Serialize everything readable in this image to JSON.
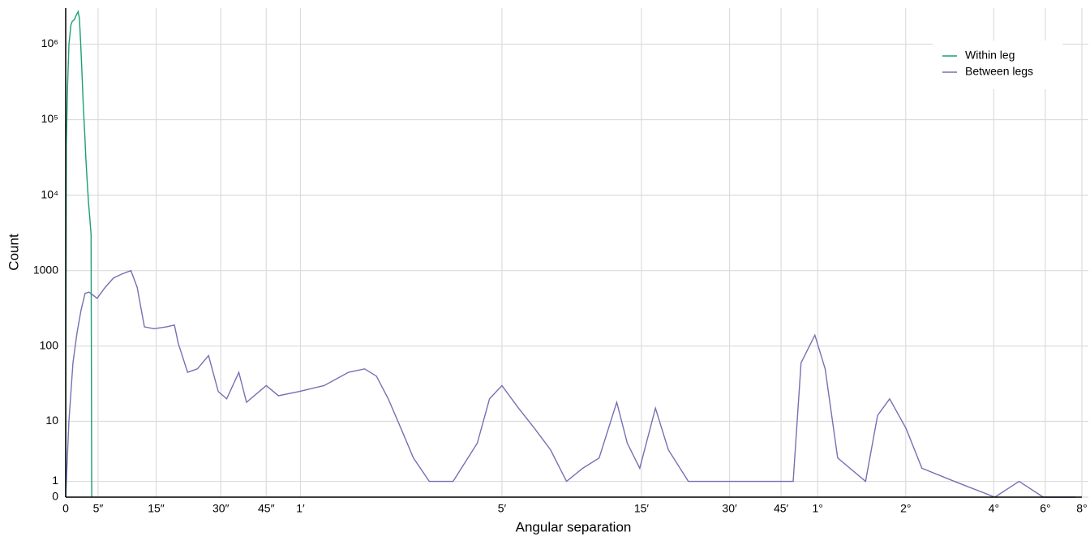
{
  "chart_data": {
    "type": "line",
    "x_label": "Angular separation",
    "y_label": "Count",
    "xscale": "asinh",
    "yscale": "asinh",
    "grid": true,
    "legend": "top-right",
    "xlim": [
      0,
      28800
    ],
    "xticks": [
      0,
      {
        "value": 5,
        "label": "5″"
      },
      {
        "value": 15,
        "label": "15″"
      },
      {
        "value": 30,
        "label": "30″"
      },
      {
        "value": 45,
        "label": "45″"
      },
      {
        "value": 60,
        "label": "1′"
      },
      {
        "value": 300,
        "label": "5′"
      },
      {
        "value": 900,
        "label": "15′"
      },
      {
        "value": 1800,
        "label": "30′"
      },
      {
        "value": 2700,
        "label": "45′"
      },
      {
        "value": 3600,
        "label": "1°"
      },
      {
        "value": 7200,
        "label": "2°"
      },
      {
        "value": 14400,
        "label": "4°"
      },
      {
        "value": 21600,
        "label": "6°"
      },
      {
        "value": 28800,
        "label": "8°"
      }
    ],
    "ylim": [
      0,
      3000000
    ],
    "yticks": [
      0,
      1,
      10,
      100,
      1000,
      {
        "value": 10000,
        "label": "10⁴"
      },
      {
        "value": 100000,
        "label": "10⁵"
      },
      {
        "value": 1000000,
        "label": "10⁶"
      }
    ],
    "series": [
      {
        "name": "Within leg",
        "color": "#1b9e77",
        "x": [
          0,
          0.1,
          0.3,
          0.5,
          0.8,
          1.0,
          1.3,
          1.6,
          1.9,
          2.1,
          2.3,
          2.5,
          2.7,
          2.9,
          3.1,
          3.3,
          3.5,
          3.7,
          3.9,
          4.0
        ],
        "values": [
          0,
          50000,
          300000,
          1000000,
          1800000,
          2000000,
          2100000,
          2400000,
          2700000,
          2200000,
          1000000,
          400000,
          150000,
          70000,
          30000,
          15000,
          8000,
          5000,
          3000,
          0
        ]
      },
      {
        "name": "Between legs",
        "color": "#7570b3",
        "x": [
          0,
          0.49,
          1.11,
          1.73,
          2.35,
          2.97,
          3.59,
          4.85,
          6.12,
          7.47,
          8.82,
          10.4,
          11.5,
          12.8,
          14.6,
          17.0,
          18.7,
          19.5,
          21.6,
          23.9,
          26.7,
          29.3,
          31.7,
          35.4,
          37.9,
          45.0,
          49.9,
          59.2,
          72.8,
          88.8,
          101,
          111,
          122,
          135,
          149,
          169,
          204,
          247,
          272,
          300,
          342,
          388,
          440,
          499,
          567,
          645,
          741,
          805,
          888,
          1005,
          1112,
          1302,
          1790,
          2446,
          2970,
          3160,
          3523,
          3820,
          4215,
          5250,
          5770,
          6345,
          7220,
          8180,
          10560,
          14520,
          17570,
          21250,
          27400
        ],
        "values": [
          0,
          10,
          60,
          150,
          300,
          500,
          520,
          430,
          600,
          800,
          900,
          1000,
          600,
          180,
          170,
          180,
          190,
          110,
          45,
          50,
          75,
          25,
          20,
          45,
          18,
          30,
          22,
          25,
          30,
          45,
          50,
          40,
          20,
          8,
          3,
          1,
          1,
          5,
          20,
          30,
          15,
          8,
          4,
          1,
          2,
          3,
          18,
          5,
          2,
          15,
          4,
          1,
          1,
          1,
          1,
          60,
          140,
          50,
          3,
          1,
          12,
          20,
          8,
          2,
          1,
          0,
          1,
          0,
          0
        ]
      }
    ]
  }
}
